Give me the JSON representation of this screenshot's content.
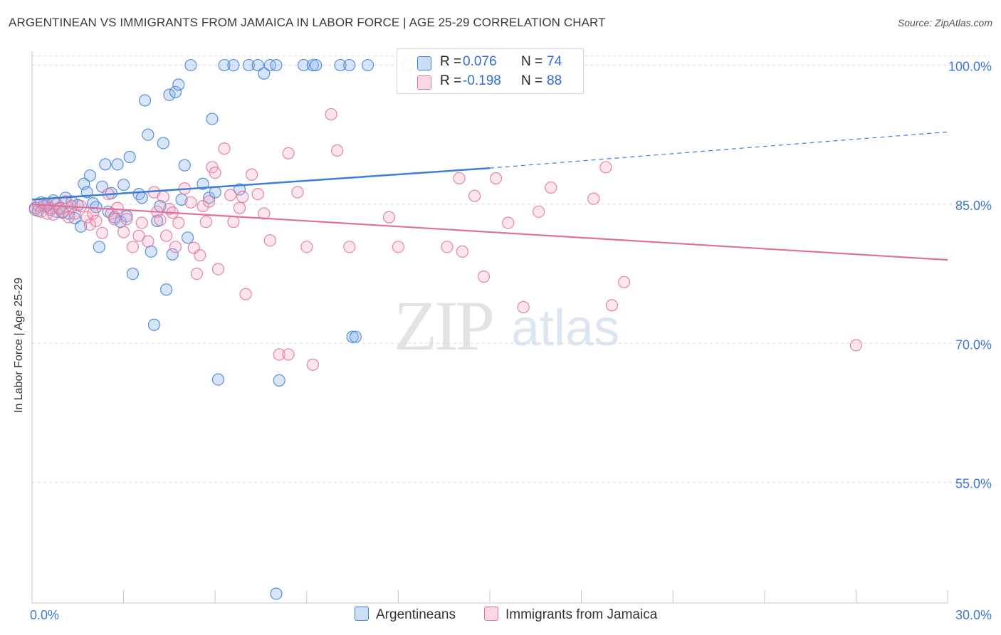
{
  "header": {
    "title": "ARGENTINEAN VS IMMIGRANTS FROM JAMAICA IN LABOR FORCE | AGE 25-29 CORRELATION CHART",
    "source": "Source: ZipAtlas.com"
  },
  "watermark": {
    "zip": "ZIP",
    "atlas": "atlas"
  },
  "legend": {
    "r_label": "R =",
    "n_label": "N =",
    "blue": {
      "r": "0.076",
      "n": "74"
    },
    "pink": {
      "r": "-0.198",
      "n": "88"
    }
  },
  "bottom_legend": {
    "blue": "Argentineans",
    "pink": "Immigrants from Jamaica"
  },
  "colors": {
    "blue": "#3d7fd6",
    "blue_fill": "rgba(143,180,236,0.35)",
    "pink": "#e0709a",
    "pink_fill": "rgba(244,168,195,0.30)",
    "tick_text": "#3f77cf"
  },
  "chart_data": {
    "type": "scatter",
    "title": "ARGENTINEAN VS IMMIGRANTS FROM JAMAICA IN LABOR FORCE | AGE 25-29 CORRELATION CHART",
    "xlabel": "",
    "ylabel": "In Labor Force | Age 25-29",
    "xlim": [
      0,
      30
    ],
    "ylim": [
      42,
      101.5
    ],
    "x_tick_labels": [
      "0.0%",
      "30.0%"
    ],
    "y_ticks": [
      55,
      70,
      85,
      100
    ],
    "y_tick_labels": [
      "55.0%",
      "70.0%",
      "85.0%",
      "100.0%"
    ],
    "grid": "horizontal dashed",
    "legend_position": "top-center",
    "series": [
      {
        "name": "Argentineans",
        "color": "#3d7fd6",
        "r": 0.076,
        "n": 74,
        "trend": {
          "x": [
            0,
            15,
            30
          ],
          "y": [
            85.5,
            88.9,
            92.8
          ],
          "solid_until": 15
        },
        "points": [
          [
            0.1,
            84.6
          ],
          [
            0.2,
            84.3
          ],
          [
            0.3,
            85.2
          ],
          [
            0.4,
            84.8
          ],
          [
            0.5,
            85.0
          ],
          [
            0.6,
            84.4
          ],
          [
            0.7,
            85.4
          ],
          [
            0.8,
            84.2
          ],
          [
            0.9,
            84.6
          ],
          [
            1.0,
            84.1
          ],
          [
            1.1,
            85.7
          ],
          [
            1.2,
            84.0
          ],
          [
            1.3,
            85.3
          ],
          [
            1.4,
            83.5
          ],
          [
            1.5,
            84.9
          ],
          [
            1.6,
            82.6
          ],
          [
            1.7,
            87.2
          ],
          [
            1.8,
            86.3
          ],
          [
            1.9,
            88.1
          ],
          [
            2.0,
            85.1
          ],
          [
            2.1,
            84.7
          ],
          [
            2.2,
            80.4
          ],
          [
            2.3,
            86.9
          ],
          [
            2.4,
            89.3
          ],
          [
            2.5,
            84.2
          ],
          [
            2.6,
            86.2
          ],
          [
            2.7,
            83.6
          ],
          [
            2.8,
            89.3
          ],
          [
            2.9,
            83.1
          ],
          [
            3.1,
            83.7
          ],
          [
            3.0,
            87.1
          ],
          [
            3.2,
            90.1
          ],
          [
            3.3,
            77.5
          ],
          [
            3.5,
            86.1
          ],
          [
            3.6,
            85.7
          ],
          [
            3.7,
            96.2
          ],
          [
            3.8,
            92.5
          ],
          [
            3.9,
            79.9
          ],
          [
            4.0,
            72.0
          ],
          [
            4.1,
            83.2
          ],
          [
            4.2,
            84.8
          ],
          [
            4.3,
            91.6
          ],
          [
            4.4,
            75.8
          ],
          [
            4.5,
            96.8
          ],
          [
            4.6,
            79.6
          ],
          [
            4.7,
            97.1
          ],
          [
            4.8,
            97.9
          ],
          [
            4.9,
            85.5
          ],
          [
            5.0,
            89.2
          ],
          [
            5.1,
            81.4
          ],
          [
            5.2,
            100.0
          ],
          [
            5.6,
            87.2
          ],
          [
            5.8,
            85.7
          ],
          [
            5.9,
            94.2
          ],
          [
            6.0,
            86.3
          ],
          [
            6.1,
            66.1
          ],
          [
            6.3,
            100.0
          ],
          [
            6.6,
            100.0
          ],
          [
            6.8,
            86.6
          ],
          [
            7.1,
            100.0
          ],
          [
            7.4,
            100.0
          ],
          [
            7.6,
            99.1
          ],
          [
            7.8,
            100.0
          ],
          [
            8.0,
            100.0
          ],
          [
            8.1,
            66.0
          ],
          [
            8.9,
            100.0
          ],
          [
            9.2,
            100.0
          ],
          [
            9.3,
            100.0
          ],
          [
            10.1,
            100.0
          ],
          [
            10.4,
            100.0
          ],
          [
            10.5,
            70.7
          ],
          [
            10.6,
            70.7
          ],
          [
            11.0,
            100.0
          ],
          [
            8.0,
            43.0
          ]
        ]
      },
      {
        "name": "Immigrants from Jamaica",
        "color": "#e0709a",
        "r": -0.198,
        "n": 88,
        "trend": {
          "x": [
            0,
            30
          ],
          "y": [
            85.0,
            79.0
          ]
        },
        "points": [
          [
            0.1,
            84.4
          ],
          [
            0.2,
            84.9
          ],
          [
            0.3,
            84.2
          ],
          [
            0.4,
            85.1
          ],
          [
            0.5,
            84.0
          ],
          [
            0.6,
            84.6
          ],
          [
            0.7,
            83.9
          ],
          [
            0.8,
            85.0
          ],
          [
            0.9,
            84.5
          ],
          [
            1.0,
            84.2
          ],
          [
            1.1,
            85.3
          ],
          [
            1.2,
            83.6
          ],
          [
            1.3,
            84.8
          ],
          [
            1.4,
            84.0
          ],
          [
            1.6,
            84.8
          ],
          [
            1.8,
            83.6
          ],
          [
            1.9,
            82.8
          ],
          [
            2.0,
            84.0
          ],
          [
            2.1,
            83.2
          ],
          [
            2.3,
            81.9
          ],
          [
            2.5,
            86.1
          ],
          [
            2.6,
            84.0
          ],
          [
            2.7,
            83.4
          ],
          [
            2.8,
            84.6
          ],
          [
            3.0,
            82.0
          ],
          [
            3.1,
            83.4
          ],
          [
            3.3,
            80.4
          ],
          [
            3.5,
            81.6
          ],
          [
            3.6,
            83.0
          ],
          [
            3.8,
            81.0
          ],
          [
            4.0,
            86.3
          ],
          [
            4.1,
            84.2
          ],
          [
            4.2,
            83.3
          ],
          [
            4.3,
            85.8
          ],
          [
            4.4,
            81.6
          ],
          [
            4.5,
            84.5
          ],
          [
            4.6,
            84.1
          ],
          [
            4.7,
            80.4
          ],
          [
            4.8,
            83.0
          ],
          [
            5.0,
            86.7
          ],
          [
            5.2,
            85.2
          ],
          [
            5.3,
            80.3
          ],
          [
            5.4,
            77.5
          ],
          [
            5.5,
            79.5
          ],
          [
            5.6,
            84.8
          ],
          [
            5.7,
            83.1
          ],
          [
            5.8,
            85.3
          ],
          [
            5.9,
            89.0
          ],
          [
            6.0,
            88.4
          ],
          [
            6.1,
            78.0
          ],
          [
            6.3,
            91.0
          ],
          [
            6.5,
            86.0
          ],
          [
            6.6,
            83.1
          ],
          [
            6.8,
            84.6
          ],
          [
            6.9,
            85.8
          ],
          [
            7.0,
            75.3
          ],
          [
            7.2,
            88.2
          ],
          [
            7.4,
            86.1
          ],
          [
            7.6,
            84.0
          ],
          [
            7.8,
            81.1
          ],
          [
            8.1,
            68.8
          ],
          [
            8.4,
            68.8
          ],
          [
            8.4,
            90.5
          ],
          [
            8.7,
            86.3
          ],
          [
            9.0,
            80.4
          ],
          [
            9.2,
            67.7
          ],
          [
            9.8,
            94.7
          ],
          [
            10.0,
            90.8
          ],
          [
            10.4,
            80.4
          ],
          [
            11.7,
            83.6
          ],
          [
            12.0,
            80.4
          ],
          [
            12.3,
            100.0
          ],
          [
            13.0,
            100.0
          ],
          [
            13.6,
            80.4
          ],
          [
            14.0,
            87.8
          ],
          [
            14.1,
            79.9
          ],
          [
            14.5,
            85.9
          ],
          [
            14.8,
            77.2
          ],
          [
            15.2,
            87.8
          ],
          [
            15.6,
            83.0
          ],
          [
            16.1,
            73.9
          ],
          [
            16.6,
            84.2
          ],
          [
            17.0,
            86.8
          ],
          [
            18.4,
            85.6
          ],
          [
            18.8,
            89.0
          ],
          [
            19.0,
            74.1
          ],
          [
            19.4,
            76.6
          ],
          [
            27.0,
            69.8
          ]
        ]
      }
    ]
  }
}
